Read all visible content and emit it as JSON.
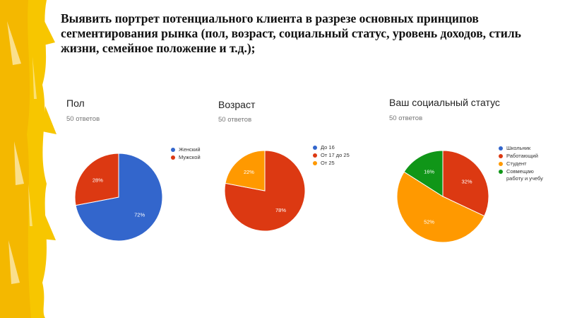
{
  "slide": {
    "title": "Выявить портрет потенциального клиента в разрезе основных принципов сегментирования рынка (пол, возраст, социальный статус, уровень доходов, стиль жизни, семейное положение и т.д.);"
  },
  "colors": {
    "blue": "#3366cc",
    "red": "#dc3912",
    "orange": "#ff9900",
    "green": "#109618",
    "brush": "#f7c600"
  },
  "chart_data": [
    {
      "type": "pie",
      "title": "Пол",
      "subtitle": "50 ответов",
      "legend_position": "right",
      "slices": [
        {
          "label": "Женский",
          "value": 72,
          "display": "72%",
          "color": "#3366cc"
        },
        {
          "label": "Мужской",
          "value": 28,
          "display": "28%",
          "color": "#dc3912"
        }
      ]
    },
    {
      "type": "pie",
      "title": "Возраст",
      "subtitle": "50 ответов",
      "legend_position": "right",
      "slices": [
        {
          "label": "До 16",
          "value": 0,
          "display": "",
          "color": "#3366cc"
        },
        {
          "label": "От 17 до 25",
          "value": 78,
          "display": "78%",
          "color": "#dc3912"
        },
        {
          "label": "От 25",
          "value": 22,
          "display": "22%",
          "color": "#ff9900"
        }
      ]
    },
    {
      "type": "pie",
      "title": "Ваш социальный статус",
      "subtitle": "50 ответов",
      "legend_position": "right",
      "slices": [
        {
          "label": "Школьник",
          "value": 0,
          "display": "",
          "color": "#3366cc"
        },
        {
          "label": "Работающий",
          "value": 32,
          "display": "32%",
          "color": "#dc3912"
        },
        {
          "label": "Студент",
          "value": 52,
          "display": "52%",
          "color": "#ff9900"
        },
        {
          "label": "Совмещаю работу и учебу",
          "value": 16,
          "display": "16%",
          "color": "#109618"
        }
      ]
    }
  ]
}
